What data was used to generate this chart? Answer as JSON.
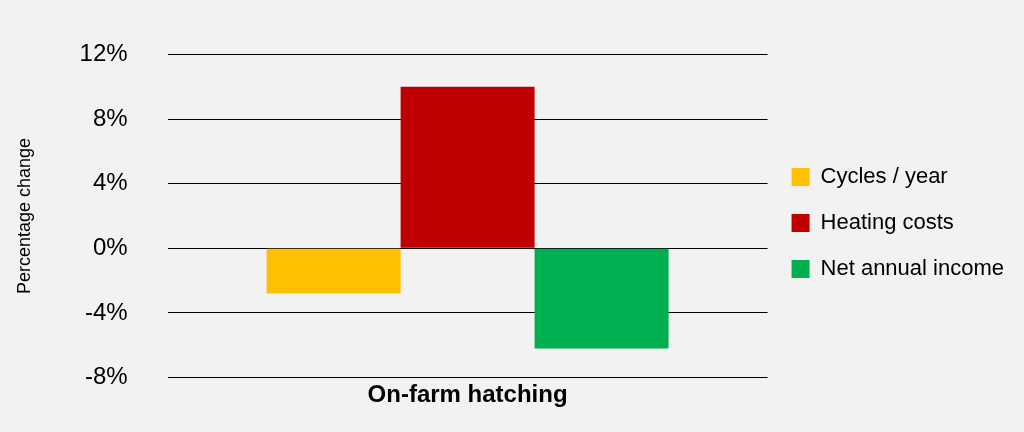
{
  "chart_data": {
    "type": "bar",
    "ylabel": "Percentage change",
    "categories": [
      "On-farm hatching"
    ],
    "series": [
      {
        "name": "Cycles / year",
        "color": "#ffc000",
        "values": [
          -2.8
        ]
      },
      {
        "name": "Heating costs",
        "color": "#c00000",
        "values": [
          10
        ]
      },
      {
        "name": "Net annual income",
        "color": "#00b050",
        "values": [
          -6.2
        ]
      }
    ],
    "ylim": [
      -8,
      12
    ],
    "yticks": [
      {
        "value": -8,
        "label": "-8%"
      },
      {
        "value": -4,
        "label": "-4%"
      },
      {
        "value": 0,
        "label": "0%"
      },
      {
        "value": 4,
        "label": "4%"
      },
      {
        "value": 8,
        "label": "8%"
      },
      {
        "value": 12,
        "label": "12%"
      }
    ],
    "grid": "y",
    "legend": "right"
  }
}
